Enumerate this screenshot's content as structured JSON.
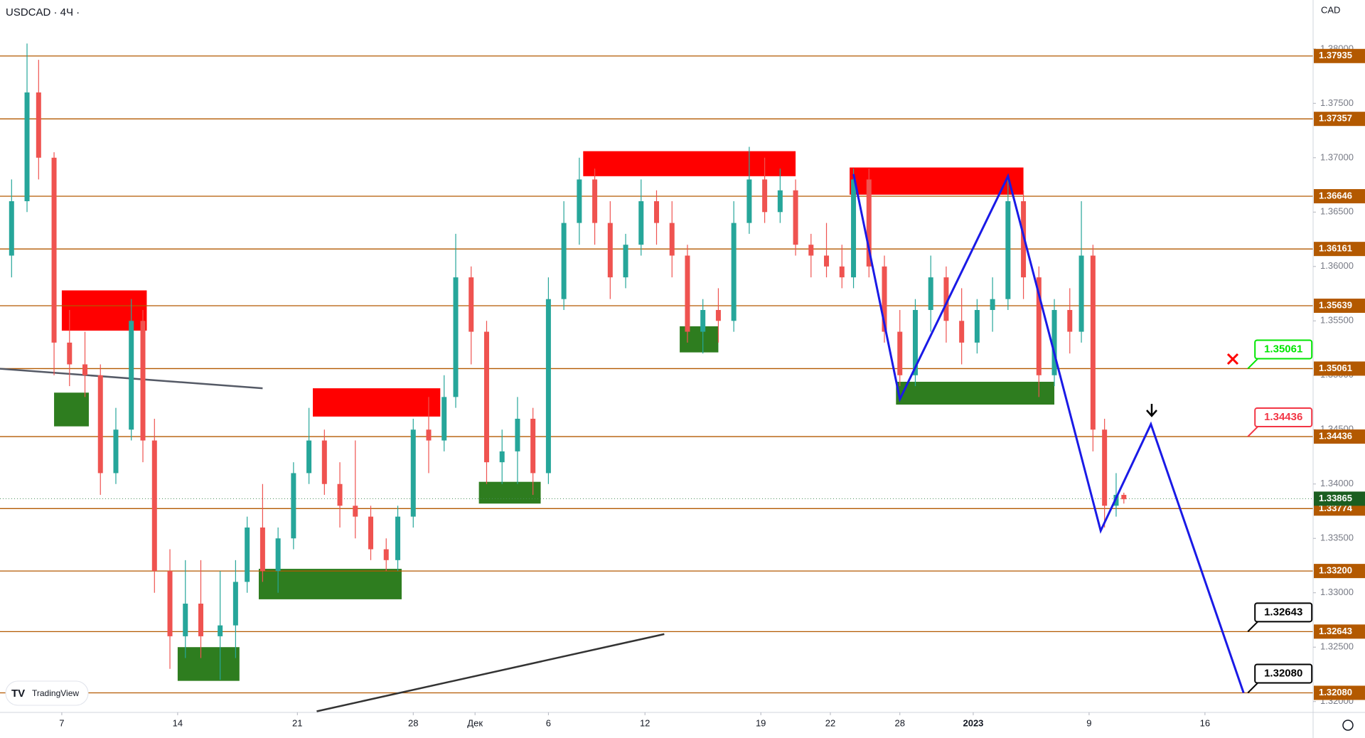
{
  "chart_data": {
    "type": "candlestick",
    "title": "USDCAD · 4Ч ·",
    "currency": "CAD",
    "brand": "TradingView",
    "xlim": [
      0,
      340
    ],
    "ylim": [
      1.319,
      1.3845
    ],
    "xticks": [
      {
        "value": 16,
        "label": "7"
      },
      {
        "value": 46,
        "label": "14"
      },
      {
        "value": 77,
        "label": "21"
      },
      {
        "value": 107,
        "label": "28"
      },
      {
        "value": 123,
        "label": "Дек"
      },
      {
        "value": 142,
        "label": "6"
      },
      {
        "value": 167,
        "label": "12"
      },
      {
        "value": 197,
        "label": "19"
      },
      {
        "value": 215,
        "label": "22"
      },
      {
        "value": 233,
        "label": "28"
      },
      {
        "value": 252,
        "label": "2023"
      },
      {
        "value": 282,
        "label": "9"
      },
      {
        "value": 312,
        "label": "16"
      }
    ],
    "yticks": [
      {
        "value": 1.38,
        "label": "1.38000"
      },
      {
        "value": 1.375,
        "label": "1.37500"
      },
      {
        "value": 1.37,
        "label": "1.37000"
      },
      {
        "value": 1.365,
        "label": "1.36500"
      },
      {
        "value": 1.36,
        "label": "1.36000"
      },
      {
        "value": 1.355,
        "label": "1.35500"
      },
      {
        "value": 1.35,
        "label": "1.35000"
      },
      {
        "value": 1.345,
        "label": "1.34500"
      },
      {
        "value": 1.34,
        "label": "1.34000"
      },
      {
        "value": 1.335,
        "label": "1.33500"
      },
      {
        "value": 1.33,
        "label": "1.33000"
      },
      {
        "value": 1.325,
        "label": "1.32500"
      },
      {
        "value": 1.32,
        "label": "1.32000"
      }
    ],
    "up_color": "#26a69a",
    "down_color": "#ef5350",
    "x": [
      3,
      7,
      10,
      14,
      18,
      22,
      26,
      30,
      34,
      37,
      40,
      44,
      48,
      52,
      57,
      61,
      64,
      68,
      72,
      76,
      80,
      84,
      88,
      92,
      96,
      100,
      103,
      107,
      111,
      115,
      118,
      122,
      126,
      130,
      134,
      138,
      142,
      146,
      150,
      154,
      158,
      162,
      166,
      170,
      174,
      178,
      182,
      186,
      190,
      194,
      198,
      202,
      206,
      210,
      214,
      218,
      221,
      225,
      229,
      233,
      237,
      241,
      245,
      249,
      253,
      257,
      261,
      265,
      269,
      273,
      277,
      280,
      283,
      286,
      289,
      291
    ],
    "ohlc": [
      [
        1.361,
        1.368,
        1.359,
        1.366
      ],
      [
        1.366,
        1.3805,
        1.365,
        1.376
      ],
      [
        1.376,
        1.379,
        1.368,
        1.37
      ],
      [
        1.37,
        1.3705,
        1.35,
        1.353
      ],
      [
        1.353,
        1.356,
        1.349,
        1.351
      ],
      [
        1.351,
        1.354,
        1.348,
        1.35
      ],
      [
        1.35,
        1.351,
        1.339,
        1.341
      ],
      [
        1.341,
        1.347,
        1.34,
        1.345
      ],
      [
        1.345,
        1.357,
        1.344,
        1.355
      ],
      [
        1.355,
        1.356,
        1.342,
        1.344
      ],
      [
        1.344,
        1.346,
        1.33,
        1.332
      ],
      [
        1.332,
        1.334,
        1.323,
        1.326
      ],
      [
        1.326,
        1.333,
        1.324,
        1.329
      ],
      [
        1.329,
        1.333,
        1.324,
        1.326
      ],
      [
        1.326,
        1.332,
        1.322,
        1.327
      ],
      [
        1.327,
        1.333,
        1.324,
        1.331
      ],
      [
        1.331,
        1.337,
        1.33,
        1.336
      ],
      [
        1.336,
        1.34,
        1.331,
        1.332
      ],
      [
        1.332,
        1.336,
        1.33,
        1.335
      ],
      [
        1.335,
        1.342,
        1.334,
        1.341
      ],
      [
        1.341,
        1.347,
        1.34,
        1.344
      ],
      [
        1.344,
        1.345,
        1.339,
        1.34
      ],
      [
        1.34,
        1.342,
        1.336,
        1.338
      ],
      [
        1.338,
        1.344,
        1.335,
        1.337
      ],
      [
        1.337,
        1.338,
        1.333,
        1.334
      ],
      [
        1.334,
        1.335,
        1.332,
        1.333
      ],
      [
        1.333,
        1.338,
        1.332,
        1.337
      ],
      [
        1.337,
        1.346,
        1.336,
        1.345
      ],
      [
        1.345,
        1.348,
        1.341,
        1.344
      ],
      [
        1.344,
        1.35,
        1.343,
        1.348
      ],
      [
        1.348,
        1.363,
        1.347,
        1.359
      ],
      [
        1.359,
        1.36,
        1.351,
        1.354
      ],
      [
        1.354,
        1.355,
        1.34,
        1.342
      ],
      [
        1.342,
        1.345,
        1.34,
        1.343
      ],
      [
        1.343,
        1.348,
        1.34,
        1.346
      ],
      [
        1.346,
        1.347,
        1.339,
        1.341
      ],
      [
        1.341,
        1.359,
        1.34,
        1.357
      ],
      [
        1.357,
        1.366,
        1.356,
        1.364
      ],
      [
        1.364,
        1.37,
        1.362,
        1.368
      ],
      [
        1.368,
        1.369,
        1.362,
        1.364
      ],
      [
        1.364,
        1.366,
        1.357,
        1.359
      ],
      [
        1.359,
        1.363,
        1.358,
        1.362
      ],
      [
        1.362,
        1.368,
        1.361,
        1.366
      ],
      [
        1.366,
        1.367,
        1.362,
        1.364
      ],
      [
        1.364,
        1.366,
        1.359,
        1.361
      ],
      [
        1.361,
        1.362,
        1.353,
        1.354
      ],
      [
        1.354,
        1.357,
        1.352,
        1.356
      ],
      [
        1.356,
        1.358,
        1.353,
        1.355
      ],
      [
        1.355,
        1.366,
        1.354,
        1.364
      ],
      [
        1.364,
        1.371,
        1.363,
        1.368
      ],
      [
        1.368,
        1.37,
        1.364,
        1.365
      ],
      [
        1.365,
        1.369,
        1.364,
        1.367
      ],
      [
        1.367,
        1.368,
        1.361,
        1.362
      ],
      [
        1.362,
        1.363,
        1.359,
        1.361
      ],
      [
        1.361,
        1.364,
        1.359,
        1.36
      ],
      [
        1.36,
        1.362,
        1.358,
        1.359
      ],
      [
        1.359,
        1.369,
        1.358,
        1.368
      ],
      [
        1.368,
        1.369,
        1.359,
        1.36
      ],
      [
        1.36,
        1.361,
        1.353,
        1.354
      ],
      [
        1.354,
        1.356,
        1.349,
        1.35
      ],
      [
        1.35,
        1.357,
        1.349,
        1.356
      ],
      [
        1.356,
        1.361,
        1.354,
        1.359
      ],
      [
        1.359,
        1.36,
        1.353,
        1.355
      ],
      [
        1.355,
        1.358,
        1.351,
        1.353
      ],
      [
        1.353,
        1.357,
        1.352,
        1.356
      ],
      [
        1.356,
        1.359,
        1.354,
        1.357
      ],
      [
        1.357,
        1.368,
        1.356,
        1.366
      ],
      [
        1.366,
        1.367,
        1.357,
        1.359
      ],
      [
        1.359,
        1.36,
        1.348,
        1.35
      ],
      [
        1.35,
        1.357,
        1.349,
        1.356
      ],
      [
        1.356,
        1.358,
        1.352,
        1.354
      ],
      [
        1.354,
        1.366,
        1.353,
        1.361
      ],
      [
        1.361,
        1.362,
        1.343,
        1.345
      ],
      [
        1.345,
        1.346,
        1.336,
        1.338
      ],
      [
        1.338,
        1.341,
        1.337,
        1.339
      ],
      [
        1.339,
        1.3392,
        1.3382,
        1.3386
      ]
    ],
    "last_price": 1.33865,
    "last_price_label": "1.33865",
    "last_price_color": "#1b5e20",
    "levels": [
      1.37935,
      1.37357,
      1.36646,
      1.36161,
      1.35639,
      1.35061,
      1.34436,
      1.33774,
      1.332,
      1.32643,
      1.3208
    ],
    "level_labels": [
      "1.37935",
      "1.37357",
      "1.36646",
      "1.36161",
      "1.35639",
      "1.35061",
      "1.34436",
      "1.33774",
      "1.33200",
      "1.32643",
      "1.32080"
    ],
    "level_color": "#b35900",
    "zones": [
      {
        "color": "#ff0000",
        "x": [
          16,
          38
        ],
        "y": [
          1.3541,
          1.3578
        ]
      },
      {
        "color": "#ff0000",
        "x": [
          81,
          114
        ],
        "y": [
          1.3462,
          1.3488
        ]
      },
      {
        "color": "#ff0000",
        "x": [
          151,
          206
        ],
        "y": [
          1.3683,
          1.3706
        ]
      },
      {
        "color": "#ff0000",
        "x": [
          220,
          265
        ],
        "y": [
          1.3666,
          1.3691
        ]
      },
      {
        "color": "#2e7d1f",
        "x": [
          14,
          23
        ],
        "y": [
          1.3453,
          1.3484
        ]
      },
      {
        "color": "#2e7d1f",
        "x": [
          46,
          62
        ],
        "y": [
          1.3219,
          1.325
        ]
      },
      {
        "color": "#2e7d1f",
        "x": [
          67,
          104
        ],
        "y": [
          1.3294,
          1.3322
        ]
      },
      {
        "color": "#2e7d1f",
        "x": [
          124,
          140
        ],
        "y": [
          1.3382,
          1.3402
        ]
      },
      {
        "color": "#2e7d1f",
        "x": [
          176,
          186
        ],
        "y": [
          1.3521,
          1.3545
        ]
      },
      {
        "color": "#2e7d1f",
        "x": [
          232,
          273
        ],
        "y": [
          1.3473,
          1.3494
        ]
      }
    ],
    "trendlines": [
      {
        "color": "#555a66",
        "x": [
          0,
          68
        ],
        "y": [
          1.3506,
          1.3488
        ]
      },
      {
        "color": "#333333",
        "x": [
          82,
          172
        ],
        "y": [
          1.3191,
          1.3262
        ]
      }
    ],
    "zigzag": {
      "color": "#1a1ae6",
      "x": [
        221,
        233,
        261,
        285,
        298,
        322
      ],
      "y": [
        1.3685,
        1.3478,
        1.3683,
        1.3357,
        1.3455,
        1.3208
      ]
    },
    "callouts": [
      {
        "x": 322,
        "price": 1.35061,
        "label": "1.35061",
        "color": "#00e600"
      },
      {
        "x": 322,
        "price": 1.34436,
        "label": "1.34436",
        "color": "#f23645"
      },
      {
        "x": 322,
        "price": 1.32643,
        "label": "1.32643",
        "color": "#000000"
      },
      {
        "x": 322,
        "price": 1.3208,
        "label": "1.32080",
        "color": "#000000"
      }
    ]
  }
}
